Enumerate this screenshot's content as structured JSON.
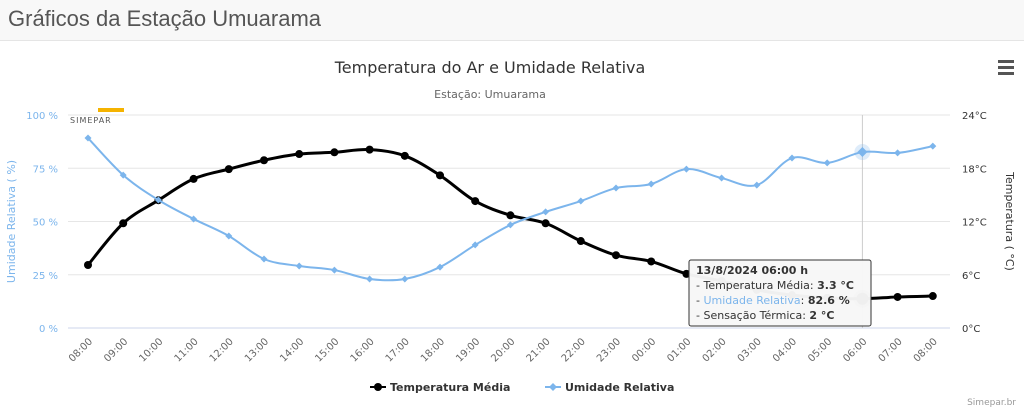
{
  "page": {
    "title": "Gráficos da Estação Umuarama"
  },
  "credits": "Simepar.br",
  "logo": "SIMEPAR",
  "tooltip": {
    "header": "13/8/2024 06:00 h",
    "temp_label": "Temperatura Média",
    "temp_value": "3.3 °C",
    "hum_label": "Umidade Relativa",
    "hum_value": "82.6 %",
    "sens_label": "Sensação Térmica",
    "sens_value": "2 °C"
  },
  "colors": {
    "temperature": "#000000",
    "humidity": "#7cb5ec"
  },
  "chart_data": {
    "type": "line",
    "title": "Temperatura do Ar e Umidade Relativa",
    "subtitle": "Estação: Umuarama",
    "ylabel_left": "Umidade Relativa ( %)",
    "ylabel_right": "Temperatura ( °C)",
    "ylim_left": [
      0,
      100
    ],
    "yticks_left": [
      "0 %",
      "25 %",
      "50 %",
      "75 %",
      "100 %"
    ],
    "ylim_right": [
      0,
      24
    ],
    "yticks_right": [
      "0°C",
      "6°C",
      "12°C",
      "18°C",
      "24°C"
    ],
    "categories": [
      "08:00",
      "09:00",
      "10:00",
      "11:00",
      "12:00",
      "13:00",
      "14:00",
      "15:00",
      "16:00",
      "17:00",
      "18:00",
      "19:00",
      "20:00",
      "21:00",
      "22:00",
      "23:00",
      "00:00",
      "01:00",
      "02:00",
      "03:00",
      "04:00",
      "05:00",
      "06:00",
      "07:00",
      "08:00"
    ],
    "legend_position": "bottom",
    "grid": true,
    "series": [
      {
        "name": "Temperatura Média",
        "axis": "right",
        "values": [
          7.1,
          11.8,
          14.4,
          16.8,
          17.9,
          18.9,
          19.6,
          19.8,
          20.1,
          19.4,
          17.2,
          14.3,
          12.7,
          11.8,
          9.8,
          8.2,
          7.5,
          6.1,
          5.3,
          4.3,
          3.7,
          3.4,
          3.3,
          3.5,
          3.6
        ]
      },
      {
        "name": "Umidade Relativa",
        "axis": "left",
        "values": [
          89.2,
          71.8,
          60.1,
          51.2,
          43.2,
          32.4,
          29.1,
          27.2,
          23.0,
          23.0,
          28.6,
          39.0,
          48.4,
          54.5,
          59.6,
          65.7,
          67.6,
          74.6,
          70.4,
          67.1,
          79.8,
          77.5,
          82.6,
          82.2,
          85.4
        ]
      }
    ]
  }
}
